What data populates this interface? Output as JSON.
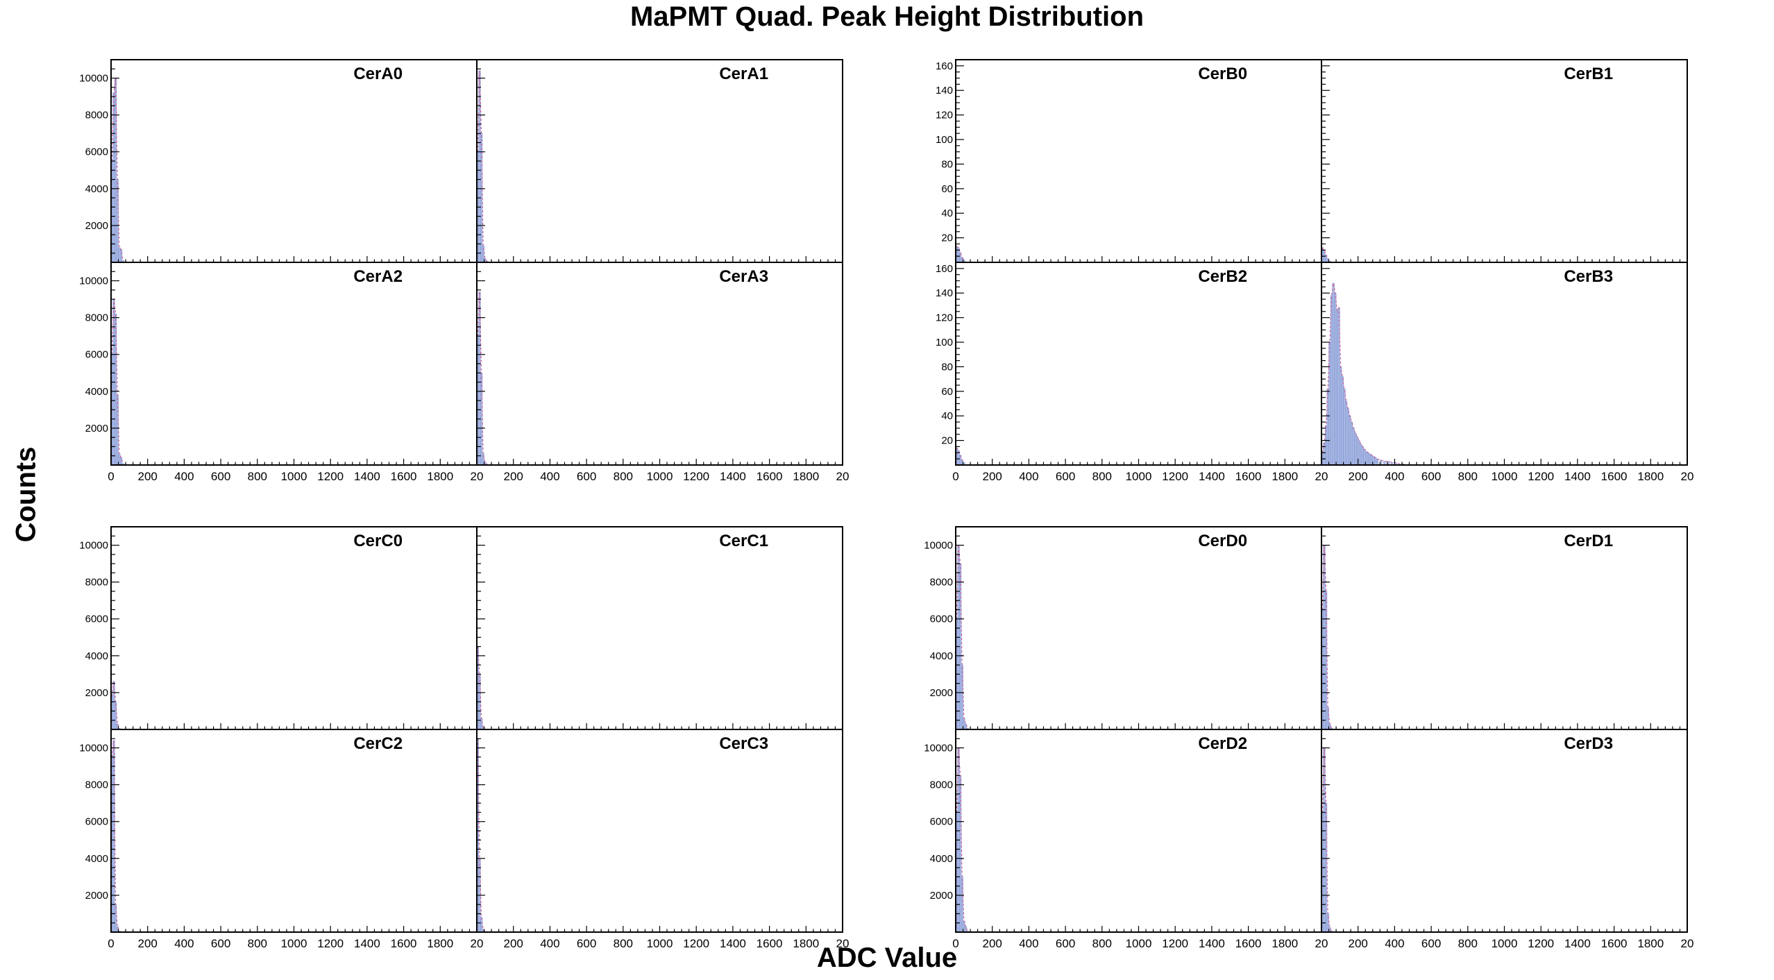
{
  "figure": {
    "title": "MaPMT Quad. Peak Height Distribution",
    "xlabel": "ADC Value",
    "ylabel": "Counts"
  },
  "colors": {
    "fill": "#a9b8e3",
    "fill_edge": "#7f95d2",
    "fit_line": "#d0609a",
    "frame": "#000000"
  },
  "chart_data": [
    {
      "type": "bar",
      "title": "CerA0",
      "xlim": [
        0,
        2000
      ],
      "ylim": [
        0,
        11000
      ],
      "xticks": [],
      "yticks": [
        2000,
        4000,
        6000,
        8000,
        10000
      ],
      "bin_width": 10,
      "bins": [
        0,
        10,
        20,
        30,
        40,
        50,
        60
      ],
      "counts": [
        5500,
        9200,
        10000,
        4500,
        800,
        700,
        100
      ]
    },
    {
      "type": "bar",
      "title": "CerA1",
      "xlim": [
        0,
        2000
      ],
      "ylim": [
        0,
        11000
      ],
      "xticks": [],
      "yticks": [],
      "bin_width": 10,
      "bins": [
        0,
        10,
        20,
        30,
        40,
        50,
        60
      ],
      "counts": [
        6000,
        10400,
        7000,
        900,
        200,
        60,
        20
      ]
    },
    {
      "type": "bar",
      "title": "CerA2",
      "xlim": [
        0,
        2000
      ],
      "ylim": [
        0,
        11000
      ],
      "xticks": [
        "0",
        "200",
        "400",
        "600",
        "800",
        "1000",
        "1200",
        "1400",
        "1600",
        "1800",
        "20"
      ],
      "yticks": [
        2000,
        4000,
        6000,
        8000,
        10000
      ],
      "bin_width": 10,
      "bins": [
        0,
        10,
        20,
        30,
        40,
        50,
        60
      ],
      "counts": [
        6000,
        9000,
        8200,
        3800,
        600,
        400,
        80
      ]
    },
    {
      "type": "bar",
      "title": "CerA3",
      "xlim": [
        0,
        2000
      ],
      "ylim": [
        0,
        11000
      ],
      "xticks": [
        "",
        "200",
        "400",
        "600",
        "800",
        "1000",
        "1200",
        "1400",
        "1600",
        "1800",
        "20"
      ],
      "yticks": [],
      "bin_width": 10,
      "bins": [
        0,
        10,
        20,
        30,
        40,
        50,
        60
      ],
      "counts": [
        7000,
        9400,
        5000,
        600,
        150,
        40,
        10
      ]
    },
    {
      "type": "bar",
      "title": "CerB0",
      "xlim": [
        0,
        2000
      ],
      "ylim": [
        0,
        165
      ],
      "xticks": [],
      "yticks": [
        20,
        40,
        60,
        80,
        100,
        120,
        140,
        160
      ],
      "bin_width": 10,
      "bins": [
        0,
        10,
        20,
        30,
        40
      ],
      "counts": [
        13,
        12,
        8,
        4,
        2
      ]
    },
    {
      "type": "bar",
      "title": "CerB1",
      "xlim": [
        0,
        2000
      ],
      "ylim": [
        0,
        165
      ],
      "xticks": [],
      "yticks": [],
      "bin_width": 10,
      "bins": [
        0,
        10,
        20,
        30,
        40
      ],
      "counts": [
        12,
        10,
        6,
        3,
        1
      ]
    },
    {
      "type": "bar",
      "title": "CerB2",
      "xlim": [
        0,
        2000
      ],
      "ylim": [
        0,
        165
      ],
      "xticks": [
        "0",
        "200",
        "400",
        "600",
        "800",
        "1000",
        "1200",
        "1400",
        "1600",
        "1800",
        "20"
      ],
      "yticks": [
        20,
        40,
        60,
        80,
        100,
        120,
        140,
        160
      ],
      "bin_width": 10,
      "bins": [
        0,
        10,
        20,
        30,
        40
      ],
      "counts": [
        14,
        12,
        8,
        4,
        2
      ]
    },
    {
      "type": "bar",
      "title": "CerB3",
      "xlim": [
        0,
        2000
      ],
      "ylim": [
        0,
        165
      ],
      "xticks": [
        "",
        "200",
        "400",
        "600",
        "800",
        "1000",
        "1200",
        "1400",
        "1600",
        "1800",
        "20"
      ],
      "yticks": [],
      "bin_width": 10,
      "bins": [
        0,
        10,
        20,
        30,
        40,
        50,
        60,
        70,
        80,
        90,
        100,
        110,
        120,
        130,
        140,
        150,
        160,
        170,
        180,
        190,
        200,
        210,
        220,
        230,
        240,
        250,
        260,
        270,
        280,
        290,
        300,
        320,
        340,
        360,
        380,
        400,
        420,
        440
      ],
      "counts": [
        10,
        18,
        32,
        62,
        100,
        138,
        148,
        140,
        126,
        128,
        80,
        72,
        62,
        52,
        46,
        40,
        35,
        30,
        26,
        23,
        20,
        17,
        15,
        13,
        11,
        10,
        9,
        8,
        7,
        6,
        5,
        4,
        3,
        3,
        2,
        2,
        1,
        1
      ]
    },
    {
      "type": "bar",
      "title": "CerC0",
      "xlim": [
        0,
        2000
      ],
      "ylim": [
        0,
        11000
      ],
      "xticks": [],
      "yticks": [
        2000,
        4000,
        6000,
        8000,
        10000
      ],
      "bin_width": 10,
      "bins": [
        0,
        10,
        20,
        30,
        40
      ],
      "counts": [
        1800,
        2600,
        1500,
        300,
        60
      ]
    },
    {
      "type": "bar",
      "title": "CerC1",
      "xlim": [
        0,
        2000
      ],
      "ylim": [
        0,
        11000
      ],
      "xticks": [],
      "yticks": [],
      "bin_width": 10,
      "bins": [
        0,
        10,
        20,
        30,
        40
      ],
      "counts": [
        4500,
        3000,
        600,
        100,
        20
      ]
    },
    {
      "type": "bar",
      "title": "CerC2",
      "xlim": [
        0,
        2000
      ],
      "ylim": [
        0,
        11000
      ],
      "xticks": [
        "0",
        "200",
        "400",
        "600",
        "800",
        "1000",
        "1200",
        "1400",
        "1600",
        "1800",
        "20"
      ],
      "yticks": [
        2000,
        4000,
        6000,
        8000,
        10000
      ],
      "bin_width": 10,
      "bins": [
        0,
        10,
        20,
        30,
        40
      ],
      "counts": [
        9500,
        10400,
        1500,
        300,
        60
      ]
    },
    {
      "type": "bar",
      "title": "CerC3",
      "xlim": [
        0,
        2000
      ],
      "ylim": [
        0,
        11000
      ],
      "xticks": [
        "",
        "200",
        "400",
        "600",
        "800",
        "1000",
        "1200",
        "1400",
        "1600",
        "1800",
        "20"
      ],
      "yticks": [],
      "bin_width": 10,
      "bins": [
        0,
        10,
        20,
        30,
        40
      ],
      "counts": [
        10500,
        4000,
        800,
        150,
        30
      ]
    },
    {
      "type": "bar",
      "title": "CerD0",
      "xlim": [
        0,
        2000
      ],
      "ylim": [
        0,
        11000
      ],
      "xticks": [],
      "yticks": [
        2000,
        4000,
        6000,
        8000,
        10000
      ],
      "bin_width": 10,
      "bins": [
        0,
        10,
        20,
        30,
        40,
        50,
        60
      ],
      "counts": [
        6000,
        10000,
        9000,
        3500,
        600,
        300,
        60
      ]
    },
    {
      "type": "bar",
      "title": "CerD1",
      "xlim": [
        0,
        2000
      ],
      "ylim": [
        0,
        11000
      ],
      "xticks": [],
      "yticks": [],
      "bin_width": 10,
      "bins": [
        0,
        10,
        20,
        30,
        40,
        50,
        60
      ],
      "counts": [
        6500,
        10000,
        7500,
        1200,
        300,
        80,
        20
      ]
    },
    {
      "type": "bar",
      "title": "CerD2",
      "xlim": [
        0,
        2000
      ],
      "ylim": [
        0,
        11000
      ],
      "xticks": [
        "0",
        "200",
        "400",
        "600",
        "800",
        "1000",
        "1200",
        "1400",
        "1600",
        "1800",
        "20"
      ],
      "yticks": [
        2000,
        4000,
        6000,
        8000,
        10000
      ],
      "bin_width": 10,
      "bins": [
        0,
        10,
        20,
        30,
        40,
        50,
        60
      ],
      "counts": [
        6500,
        10000,
        8500,
        3000,
        600,
        300,
        60
      ]
    },
    {
      "type": "bar",
      "title": "CerD3",
      "xlim": [
        0,
        2000
      ],
      "ylim": [
        0,
        11000
      ],
      "xticks": [
        "",
        "200",
        "400",
        "600",
        "800",
        "1000",
        "1200",
        "1400",
        "1600",
        "1800",
        "20"
      ],
      "yticks": [],
      "bin_width": 10,
      "bins": [
        0,
        10,
        20,
        30,
        40,
        50,
        60
      ],
      "counts": [
        6500,
        10000,
        7000,
        1000,
        250,
        60,
        20
      ]
    }
  ]
}
